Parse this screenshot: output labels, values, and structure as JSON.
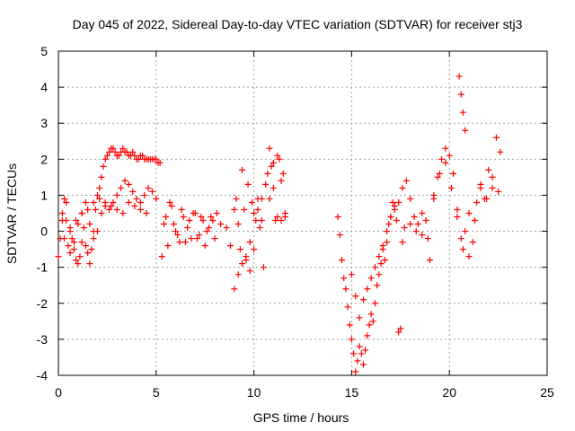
{
  "chart_data": {
    "type": "scatter",
    "title": "Day 045 of 2022, Sidereal Day-to-day VTEC variation (SDTVAR) for receiver stj3",
    "xlabel": "GPS time / hours",
    "ylabel": "SDTVAR / TECUs",
    "xlim": [
      0,
      25
    ],
    "ylim": [
      -4,
      5
    ],
    "xticks": [
      0,
      5,
      10,
      15,
      20,
      25
    ],
    "yticks": [
      -4,
      -3,
      -2,
      -1,
      0,
      1,
      2,
      3,
      4,
      5
    ],
    "xtick_labels": [
      "0",
      "5",
      "10",
      "15",
      "20",
      "25"
    ],
    "ytick_labels": [
      "-4",
      "-3",
      "-2",
      "-1",
      "0",
      "1",
      "2",
      "3",
      "4",
      "5"
    ],
    "grid": true,
    "marker": "+",
    "marker_color": "#ff0000",
    "series": [
      {
        "name": "SDTVAR",
        "x": [
          0.0,
          0.1,
          0.2,
          0.3,
          0.4,
          0.5,
          0.6,
          0.7,
          0.8,
          0.9,
          1.0,
          1.1,
          1.2,
          1.3,
          1.4,
          1.5,
          1.6,
          1.7,
          1.8,
          1.9,
          2.0,
          2.1,
          2.2,
          2.3,
          2.4,
          2.5,
          2.6,
          2.7,
          2.8,
          2.9,
          3.0,
          3.1,
          3.2,
          3.3,
          3.4,
          3.5,
          3.6,
          3.7,
          3.8,
          3.9,
          4.0,
          4.1,
          4.2,
          4.3,
          4.4,
          4.5,
          4.6,
          4.7,
          4.8,
          4.9,
          5.0,
          5.1,
          5.2,
          0.2,
          0.4,
          0.6,
          0.8,
          1.0,
          1.2,
          1.4,
          1.6,
          1.8,
          2.0,
          2.2,
          2.4,
          2.6,
          2.8,
          3.0,
          3.2,
          3.4,
          3.6,
          3.8,
          4.0,
          4.2,
          4.4,
          4.6,
          4.8,
          5.0,
          0.3,
          0.6,
          0.9,
          1.2,
          1.5,
          1.8,
          2.1,
          2.4,
          2.7,
          3.0,
          3.3,
          3.6,
          3.9,
          4.2,
          4.5,
          5.3,
          5.5,
          5.7,
          5.9,
          6.1,
          6.3,
          6.5,
          6.7,
          6.9,
          7.1,
          7.3,
          7.5,
          7.7,
          7.9,
          8.1,
          8.3,
          5.4,
          5.6,
          5.8,
          6.0,
          6.2,
          6.4,
          6.6,
          6.8,
          7.0,
          7.2,
          7.4,
          7.6,
          7.8,
          8.0,
          8.6,
          8.8,
          9.0,
          9.1,
          9.2,
          9.3,
          9.4,
          9.5,
          9.6,
          9.7,
          9.8,
          9.9,
          10.0,
          10.1,
          10.2,
          10.3,
          10.4,
          9.0,
          9.2,
          9.4,
          9.6,
          9.8,
          10.0,
          10.2,
          10.4,
          10.5,
          10.6,
          10.7,
          10.8,
          10.9,
          11.0,
          11.1,
          11.2,
          11.3,
          11.4,
          11.5,
          11.6,
          10.8,
          11.0,
          11.2,
          11.4,
          11.6,
          14.3,
          14.4,
          14.5,
          14.6,
          14.7,
          14.8,
          14.9,
          15.0,
          15.1,
          15.2,
          15.3,
          15.4,
          15.5,
          15.6,
          15.7,
          15.8,
          15.9,
          16.0,
          16.1,
          16.2,
          16.3,
          16.4,
          16.5,
          16.6,
          16.7,
          16.8,
          16.9,
          17.0,
          17.1,
          17.2,
          17.3,
          17.4,
          17.5,
          17.6,
          17.7,
          15.0,
          15.2,
          15.4,
          15.6,
          15.8,
          16.0,
          16.2,
          16.4,
          16.6,
          16.8,
          17.0,
          17.2,
          17.4,
          17.6,
          17.8,
          18.0,
          18.2,
          18.4,
          18.6,
          18.8,
          19.0,
          19.2,
          19.4,
          19.6,
          19.8,
          20.0,
          20.2,
          20.4,
          20.6,
          20.8,
          21.0,
          21.2,
          21.4,
          21.6,
          21.8,
          22.0,
          22.2,
          22.4,
          22.6,
          18.0,
          18.3,
          18.6,
          18.9,
          19.2,
          19.5,
          19.8,
          20.1,
          20.4,
          20.7,
          21.0,
          21.3,
          21.6,
          21.9,
          22.2,
          22.5,
          20.5,
          20.6,
          20.7,
          20.8
        ],
        "y": [
          -0.7,
          -0.2,
          0.5,
          0.9,
          0.3,
          -0.4,
          -0.6,
          -0.2,
          -0.5,
          -0.8,
          -0.9,
          -0.7,
          -0.3,
          0.1,
          -0.4,
          -0.6,
          -0.9,
          -0.5,
          0.0,
          0.6,
          1.0,
          1.2,
          1.5,
          1.8,
          2.0,
          2.1,
          2.2,
          2.3,
          2.3,
          2.2,
          2.1,
          2.1,
          2.2,
          2.3,
          2.2,
          2.2,
          2.1,
          2.1,
          2.2,
          2.1,
          2.0,
          2.0,
          2.1,
          2.1,
          2.0,
          2.0,
          2.0,
          2.0,
          2.0,
          2.0,
          2.0,
          1.9,
          1.9,
          0.3,
          0.8,
          0.1,
          -0.3,
          0.2,
          0.5,
          0.8,
          0.2,
          -0.2,
          0.0,
          0.5,
          0.7,
          0.6,
          0.8,
          1.0,
          1.2,
          1.4,
          1.3,
          1.1,
          0.9,
          0.8,
          1.0,
          1.2,
          1.1,
          0.9,
          -0.2,
          0.0,
          0.3,
          0.5,
          0.6,
          0.8,
          0.9,
          0.8,
          0.7,
          0.6,
          0.5,
          0.8,
          0.7,
          0.6,
          0.5,
          -0.7,
          0.4,
          0.8,
          0.2,
          -0.1,
          0.6,
          -0.3,
          0.3,
          0.5,
          -0.2,
          0.4,
          -0.4,
          0.1,
          0.3,
          0.5,
          0.2,
          0.2,
          -0.4,
          0.7,
          0.0,
          -0.3,
          0.4,
          0.1,
          -0.2,
          0.5,
          -0.1,
          0.3,
          0.0,
          0.4,
          -0.2,
          0.1,
          -0.4,
          0.6,
          0.9,
          0.2,
          -0.5,
          1.7,
          0.6,
          -0.8,
          1.3,
          -1.1,
          0.8,
          -0.5,
          0.3,
          0.6,
          0.1,
          0.9,
          -1.6,
          -1.2,
          -0.9,
          -0.7,
          -0.3,
          0.5,
          0.9,
          0.3,
          -1.0,
          1.3,
          1.6,
          2.3,
          1.8,
          1.2,
          0.3,
          0.4,
          2.0,
          1.4,
          1.6,
          0.5,
          0.9,
          1.9,
          2.1,
          0.3,
          0.4,
          0.4,
          -0.1,
          -0.8,
          -1.3,
          -1.6,
          -2.1,
          -2.6,
          -3.0,
          -3.4,
          -3.9,
          -3.6,
          -3.2,
          -3.4,
          -3.7,
          -3.3,
          -2.9,
          -2.6,
          -2.3,
          -2.5,
          -2.0,
          -1.5,
          -1.2,
          -0.9,
          -0.5,
          -0.8,
          -0.3,
          0.2,
          0.4,
          0.8,
          0.6,
          0.3,
          -2.8,
          -2.7,
          -0.3,
          0.1,
          -1.2,
          -1.8,
          -2.4,
          -1.9,
          -1.6,
          -1.3,
          -1.0,
          -0.7,
          -0.4,
          0.0,
          0.4,
          0.7,
          0.8,
          1.2,
          1.4,
          0.9,
          0.4,
          0.2,
          -0.1,
          0.3,
          -0.8,
          1.0,
          1.5,
          2.0,
          2.3,
          2.1,
          1.6,
          0.6,
          -0.2,
          0.0,
          0.5,
          -0.3,
          0.8,
          1.3,
          0.9,
          1.7,
          1.2,
          2.6,
          2.2,
          0.2,
          0.0,
          0.5,
          -0.2,
          0.9,
          1.6,
          1.9,
          1.2,
          0.4,
          -0.5,
          -0.7,
          0.3,
          1.2,
          0.9,
          1.5,
          1.1,
          4.3,
          3.8,
          3.3,
          2.8
        ]
      }
    ]
  }
}
